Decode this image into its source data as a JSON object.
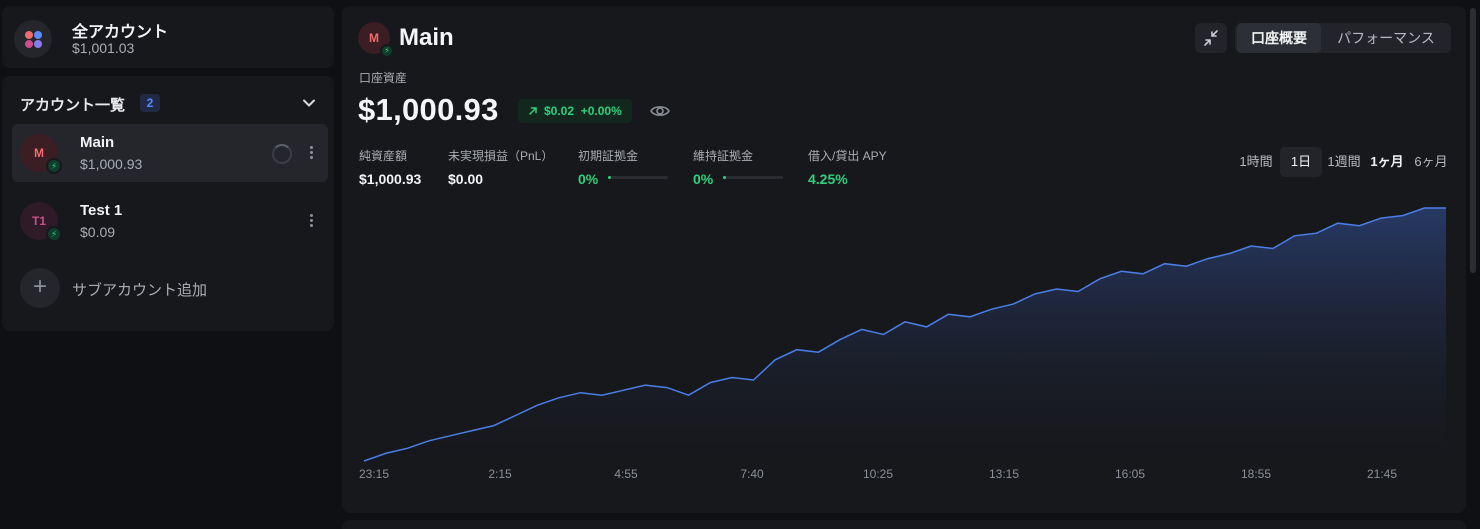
{
  "all_accounts": {
    "title": "全アカウント",
    "value": "$1,001.03"
  },
  "account_list": {
    "header": "アカウント一覧",
    "count": "2",
    "accounts": [
      {
        "initial": "M",
        "name": "Main",
        "value": "$1,000.93"
      },
      {
        "initial": "T1",
        "name": "Test 1",
        "value": "$0.09"
      }
    ],
    "add_label": "サブアカウント追加",
    "add_symbol": "+"
  },
  "main": {
    "initial": "M",
    "title": "Main",
    "equity_label": "口座資産",
    "equity_value": "$1,000.93",
    "change_amount": "$0.02",
    "change_percent": "+0.00%",
    "tabs": [
      "口座概要",
      "パフォーマンス"
    ],
    "stats": [
      {
        "label": "純資産額",
        "value": "$1,000.93"
      },
      {
        "label": "未実現損益（PnL）",
        "value": "$0.00"
      },
      {
        "label": "初期証拠金",
        "value": "0%"
      },
      {
        "label": "維持証拠金",
        "value": "0%"
      },
      {
        "label": "借入/貸出 APY",
        "value": "4.25%"
      }
    ],
    "margin_fill": {
      "initial_margin": 0.0,
      "maintenance_margin": 0.0
    },
    "ranges": [
      "1時間",
      "1日",
      "1週間",
      "1ヶ月",
      "6ヶ月"
    ],
    "selected_range": "1日"
  },
  "colors": {
    "accent_green": "#2fd17c",
    "line_blue": "#4a7fe8",
    "badge_blue": "#5d8bff",
    "avatar_main": "#f06b6b",
    "avatar_test": "#c9508a"
  },
  "icons": {
    "all_accounts": "four-dots-icon",
    "bolt": "bolt-icon",
    "collapse": "collapse-arrows-icon",
    "eye": "eye-icon",
    "trend": "arrow-up-right-icon",
    "menu": "kebab-menu-icon"
  },
  "chart_data": {
    "type": "area",
    "x_ticks": [
      "23:15",
      "2:15",
      "4:55",
      "7:40",
      "10:25",
      "13:15",
      "16:05",
      "18:55",
      "21:45"
    ],
    "x": [
      0,
      0.02,
      0.04,
      0.06,
      0.08,
      0.1,
      0.12,
      0.14,
      0.16,
      0.18,
      0.2,
      0.22,
      0.24,
      0.26,
      0.28,
      0.3,
      0.32,
      0.34,
      0.36,
      0.38,
      0.4,
      0.42,
      0.44,
      0.46,
      0.48,
      0.5,
      0.52,
      0.54,
      0.56,
      0.58,
      0.6,
      0.62,
      0.64,
      0.66,
      0.68,
      0.7,
      0.72,
      0.74,
      0.76,
      0.78,
      0.8,
      0.82,
      0.84,
      0.86,
      0.88,
      0.9,
      0.92,
      0.94,
      0.96,
      0.98,
      1.0
    ],
    "y": [
      0.0,
      0.03,
      0.05,
      0.08,
      0.1,
      0.12,
      0.14,
      0.18,
      0.22,
      0.25,
      0.27,
      0.26,
      0.28,
      0.3,
      0.29,
      0.26,
      0.31,
      0.33,
      0.32,
      0.4,
      0.44,
      0.43,
      0.48,
      0.52,
      0.5,
      0.55,
      0.53,
      0.58,
      0.57,
      0.6,
      0.62,
      0.66,
      0.68,
      0.67,
      0.72,
      0.75,
      0.74,
      0.78,
      0.77,
      0.8,
      0.82,
      0.85,
      0.84,
      0.89,
      0.9,
      0.94,
      0.93,
      0.96,
      0.97,
      1.0,
      1.0
    ],
    "series": [
      {
        "values_ref": "y"
      }
    ],
    "grid": false,
    "legend": "none"
  }
}
